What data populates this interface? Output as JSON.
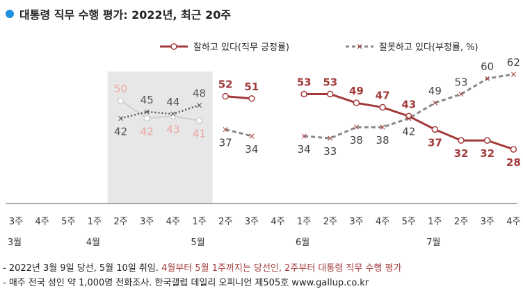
{
  "title": "대통령 직무 수행 평가: 2022년, 최근 20주",
  "colors": {
    "title_dot": "#1f8fe0",
    "approve": "#a33a3a",
    "disapprove": "#888888",
    "elect_approve": "#e9a6a6",
    "elect_disapprove": "#555555",
    "elect_light": "#cfcfcf",
    "shade": "#e7e7e7"
  },
  "chart_data": {
    "type": "line",
    "x": [
      "3주",
      "4주",
      "5주",
      "1주",
      "2주",
      "3주",
      "4주",
      "1주",
      "2주",
      "3주",
      "4주",
      "1주",
      "2주",
      "3주",
      "4주",
      "5주",
      "1주",
      "2주",
      "3주",
      "4주"
    ],
    "month_labels": [
      {
        "label": "3월",
        "at": 0
      },
      {
        "label": "4월",
        "at": 3
      },
      {
        "label": "5월",
        "at": 7
      },
      {
        "label": "6월",
        "at": 11
      },
      {
        "label": "7월",
        "at": 16
      }
    ],
    "legend": {
      "approve": "잘하고 있다(직무 긍정률)",
      "disapprove": "잘못하고 있다(부정률, %)"
    },
    "series": [
      {
        "name": "잘하고 있다(직무 긍정률)",
        "values": [
          null,
          null,
          null,
          null,
          50,
          42,
          43,
          41,
          52,
          51,
          null,
          53,
          53,
          49,
          47,
          43,
          37,
          32,
          32,
          28
        ]
      },
      {
        "name": "잘못하고 있다(부정률, %)",
        "values": [
          null,
          null,
          null,
          null,
          42,
          45,
          44,
          48,
          37,
          34,
          null,
          34,
          33,
          38,
          38,
          42,
          49,
          53,
          60,
          62
        ]
      }
    ],
    "shaded_range": [
      4,
      7
    ],
    "ylim": [
      0,
      70
    ]
  },
  "notes": {
    "line1_plain": "- 2022년 3월 9일 당선, 5월 10일 취임. ",
    "line1_red": "4월부터 5월 1주까지는 당선인, 2주부터 대통령 직무 수행 평가",
    "line2": "- 매주 전국 성인 약 1,000명 전화조사. 한국갤럽 데일리 오피니언 제505호 www.gallup.co.kr"
  }
}
